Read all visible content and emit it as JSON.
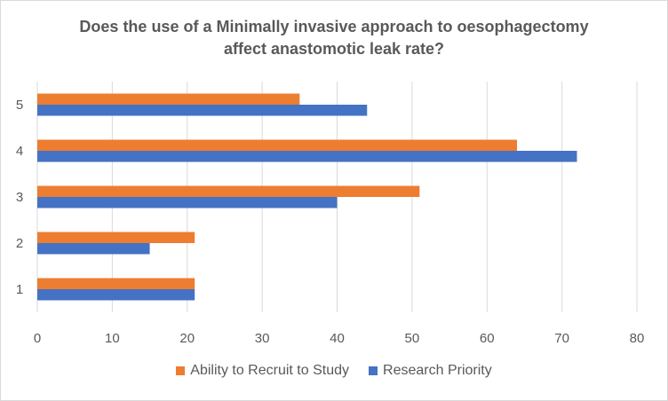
{
  "chart_data": {
    "type": "bar",
    "orientation": "horizontal",
    "title_lines": [
      "Does the use of a Minimally invasive approach to oesophagectomy",
      "affect anastomotic leak rate?"
    ],
    "categories": [
      "1",
      "2",
      "3",
      "4",
      "5"
    ],
    "series": [
      {
        "name": "Research Priority",
        "color": "#4472c4",
        "values": [
          21,
          15,
          40,
          72,
          44
        ]
      },
      {
        "name": "Ability to Recruit to Study",
        "color": "#ed7d31",
        "values": [
          21,
          21,
          51,
          64,
          35
        ]
      }
    ],
    "xlim": [
      0,
      80
    ],
    "xticks": [
      0,
      10,
      20,
      30,
      40,
      50,
      60,
      70,
      80
    ],
    "grid": "vertical",
    "legend_position": "bottom",
    "legend_order": [
      1,
      0
    ]
  }
}
